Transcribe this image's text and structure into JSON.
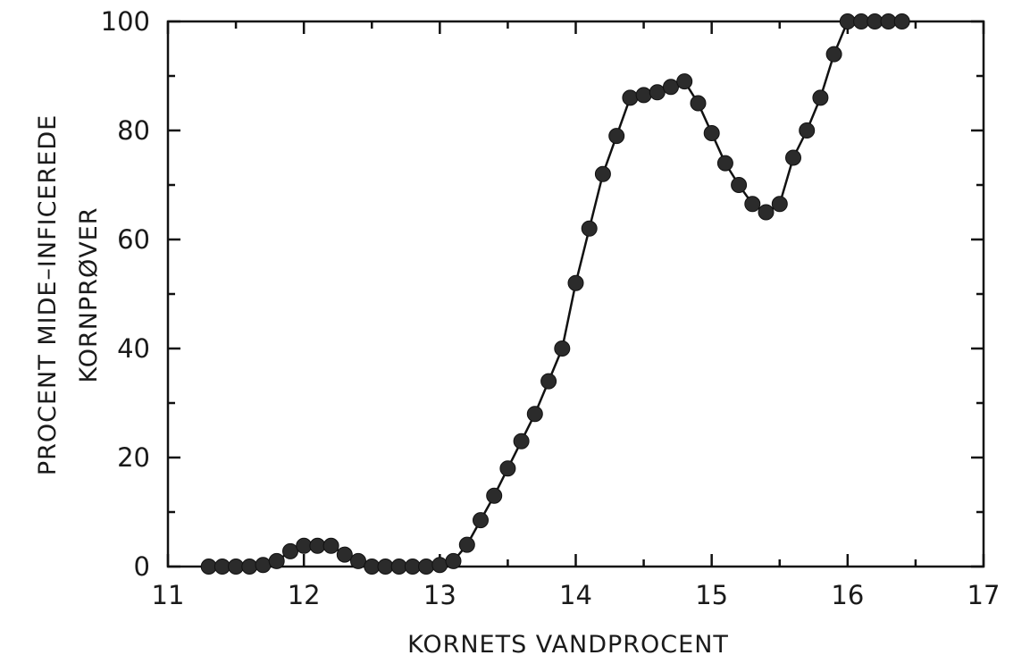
{
  "chart_data": {
    "type": "line",
    "title": "",
    "xlabel": "KORNETS VANDPROCENT",
    "ylabel_lines": [
      "PROCENT MIDE–INFICEREDE",
      "KORNPRØVER"
    ],
    "xlim": [
      11,
      17
    ],
    "ylim": [
      0,
      100
    ],
    "x_ticks": [
      11,
      12,
      13,
      14,
      15,
      16,
      17
    ],
    "y_ticks": [
      0,
      20,
      40,
      60,
      80,
      100
    ],
    "x_minor_step": 0.5,
    "y_minor_step": 10,
    "grid": false,
    "markers": "filled-circle",
    "series": [
      {
        "points": [
          [
            11.3,
            0
          ],
          [
            11.4,
            0
          ],
          [
            11.5,
            0
          ],
          [
            11.6,
            0
          ],
          [
            11.7,
            0.3
          ],
          [
            11.8,
            1
          ],
          [
            11.9,
            2.8
          ],
          [
            12.0,
            3.8
          ],
          [
            12.1,
            3.8
          ],
          [
            12.2,
            3.8
          ],
          [
            12.3,
            2.2
          ],
          [
            12.4,
            1
          ],
          [
            12.5,
            0
          ],
          [
            12.6,
            0
          ],
          [
            12.7,
            0
          ],
          [
            12.8,
            0
          ],
          [
            12.9,
            0
          ],
          [
            13.0,
            0.3
          ],
          [
            13.1,
            1
          ],
          [
            13.2,
            4
          ],
          [
            13.3,
            8.5
          ],
          [
            13.4,
            13
          ],
          [
            13.5,
            18
          ],
          [
            13.6,
            23
          ],
          [
            13.7,
            28
          ],
          [
            13.8,
            34
          ],
          [
            13.9,
            40
          ],
          [
            14.0,
            52
          ],
          [
            14.1,
            62
          ],
          [
            14.2,
            72
          ],
          [
            14.3,
            79
          ],
          [
            14.4,
            86
          ],
          [
            14.5,
            86.5
          ],
          [
            14.6,
            87
          ],
          [
            14.7,
            88
          ],
          [
            14.8,
            89
          ],
          [
            14.9,
            85
          ],
          [
            15.0,
            79.5
          ],
          [
            15.1,
            74
          ],
          [
            15.2,
            70
          ],
          [
            15.3,
            66.5
          ],
          [
            15.4,
            65
          ],
          [
            15.5,
            66.5
          ],
          [
            15.6,
            75
          ],
          [
            15.7,
            80
          ],
          [
            15.8,
            86
          ],
          [
            15.9,
            94
          ],
          [
            16.0,
            100
          ],
          [
            16.1,
            100
          ],
          [
            16.2,
            100
          ],
          [
            16.3,
            100
          ],
          [
            16.4,
            100
          ]
        ]
      }
    ]
  }
}
